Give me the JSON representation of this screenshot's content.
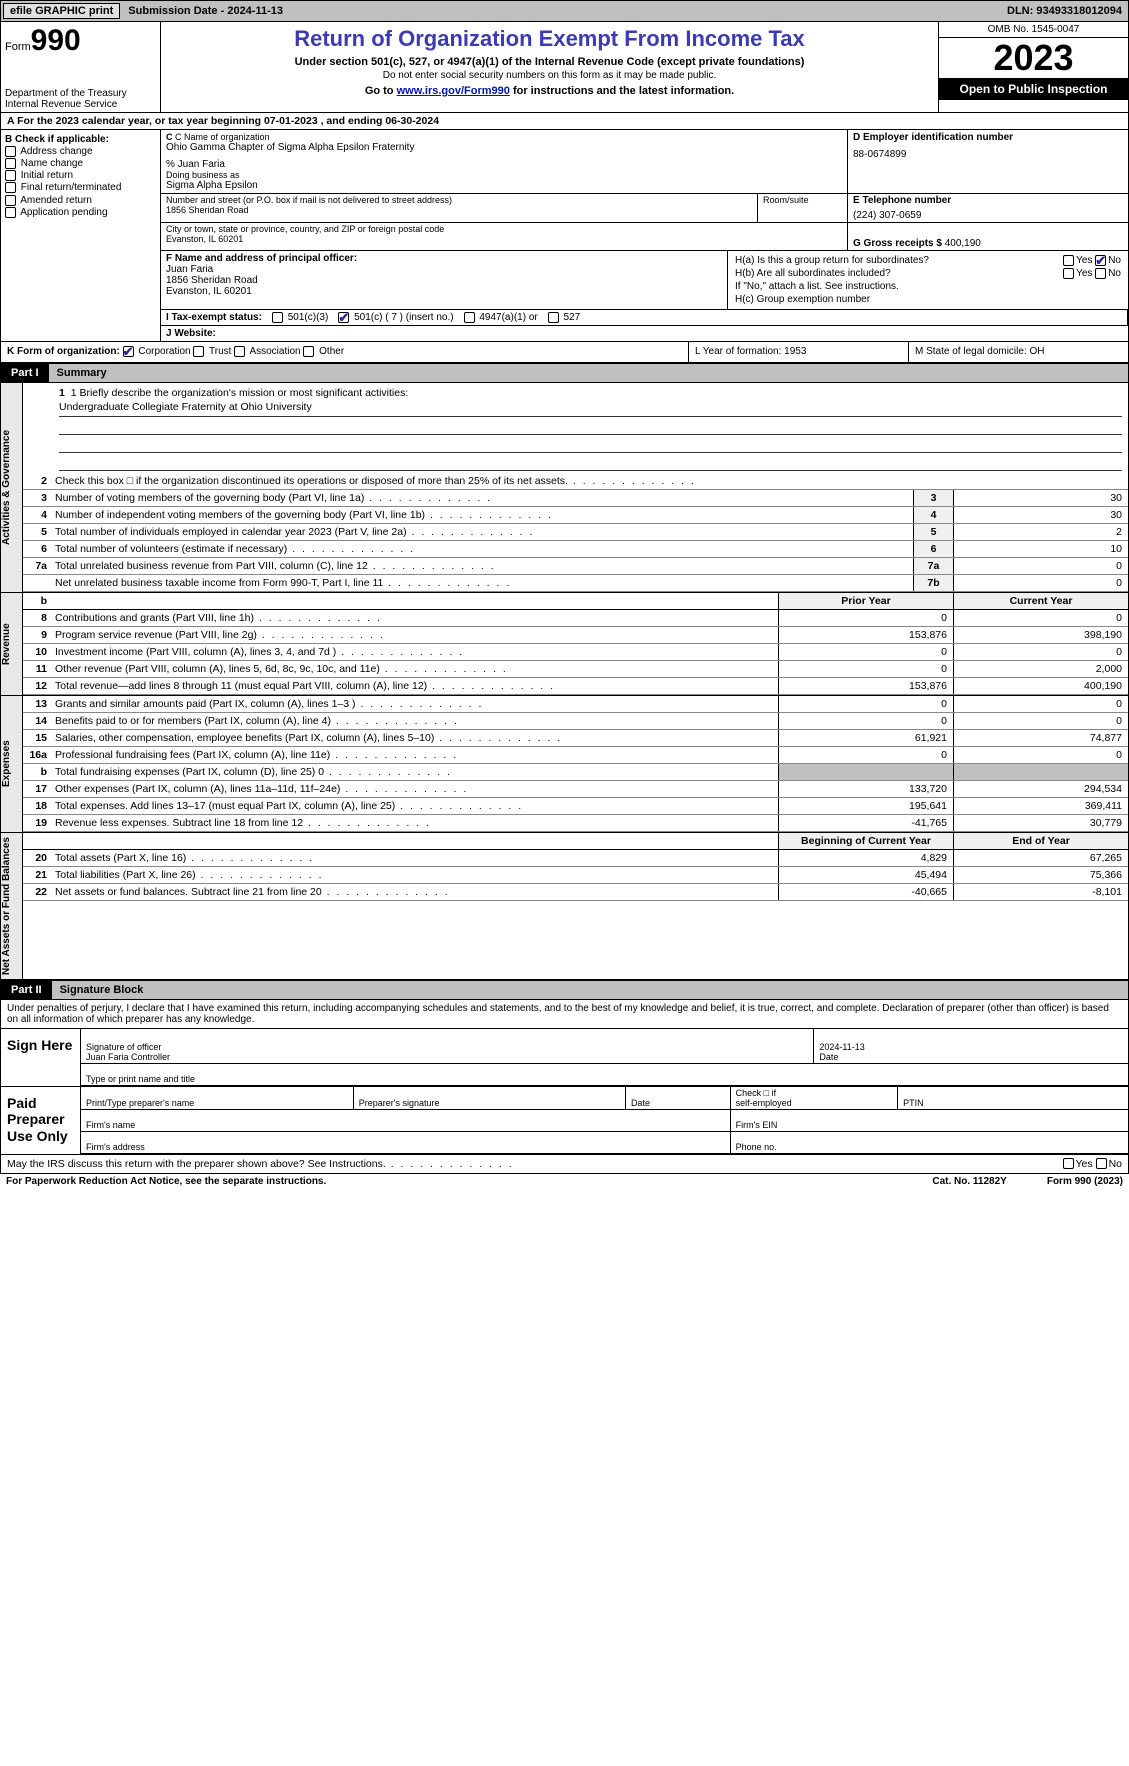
{
  "topbar": {
    "efile": "efile GRAPHIC print",
    "subdate_lbl": "Submission Date - ",
    "subdate": "2024-11-13",
    "dln_lbl": "DLN: ",
    "dln": "93493318012094"
  },
  "header": {
    "form_lbl": "Form",
    "form_no": "990",
    "dept": "Department of the Treasury\nInternal Revenue Service",
    "title": "Return of Organization Exempt From Income Tax",
    "sub": "Under section 501(c), 527, or 4947(a)(1) of the Internal Revenue Code (except private foundations)",
    "sub2": "Do not enter social security numbers on this form as it may be made public.",
    "goto_pre": "Go to ",
    "goto_link": "www.irs.gov/Form990",
    "goto_post": " for instructions and the latest information.",
    "omb": "OMB No. 1545-0047",
    "year": "2023",
    "open": "Open to Public Inspection"
  },
  "lineA": "A For the 2023 calendar year, or tax year beginning 07-01-2023   , and ending 06-30-2024",
  "boxB": {
    "title": "B Check if applicable:",
    "items": [
      "Address change",
      "Name change",
      "Initial return",
      "Final return/terminated",
      "Amended return",
      "Application pending"
    ]
  },
  "boxC": {
    "name_lbl": "C Name of organization",
    "name": "Ohio Gamma Chapter of Sigma Alpha Epsilon Fraternity",
    "co": "% Juan Faria",
    "dba_lbl": "Doing business as",
    "dba": "Sigma Alpha Epsilon",
    "addr_lbl": "Number and street (or P.O. box if mail is not delivered to street address)",
    "addr": "1856 Sheridan Road",
    "room_lbl": "Room/suite",
    "city_lbl": "City or town, state or province, country, and ZIP or foreign postal code",
    "city": "Evanston, IL  60201"
  },
  "boxD": {
    "lbl": "D Employer identification number",
    "val": "88-0674899"
  },
  "boxE": {
    "lbl": "E Telephone number",
    "val": "(224) 307-0659"
  },
  "boxG": {
    "lbl": "G Gross receipts $ ",
    "val": "400,190"
  },
  "boxF": {
    "lbl": "F  Name and address of principal officer:",
    "name": "Juan Faria",
    "addr1": "1856 Sheridan Road",
    "addr2": "Evanston, IL  60201"
  },
  "boxH": {
    "ha": "H(a)  Is this a group return for subordinates?",
    "yes": "Yes",
    "no": "No",
    "hb": "H(b)  Are all subordinates included?",
    "note": "If \"No,\" attach a list. See instructions.",
    "hc": "H(c)  Group exemption number"
  },
  "rowI": {
    "lbl": "I  Tax-exempt status:",
    "o1": "501(c)(3)",
    "o2": "501(c) ( 7 ) (insert no.)",
    "o3": "4947(a)(1) or",
    "o4": "527"
  },
  "rowJ": {
    "lbl": "J  Website:"
  },
  "rowK": {
    "lbl": "K Form of organization:",
    "corp": "Corporation",
    "trust": "Trust",
    "assoc": "Association",
    "other": "Other",
    "L": "L Year of formation: 1953",
    "M": "M State of legal domicile: OH"
  },
  "partI": {
    "num": "Part I",
    "title": "Summary"
  },
  "mission": {
    "q": "1  Briefly describe the organization's mission or most significant activities:",
    "a": "Undergraduate Collegiate Fraternity at Ohio University"
  },
  "gov_lines": [
    {
      "n": "2",
      "t": "Check this box □ if the organization discontinued its operations or disposed of more than 25% of its net assets."
    },
    {
      "n": "3",
      "t": "Number of voting members of the governing body (Part VI, line 1a)",
      "box": "3",
      "v": "30"
    },
    {
      "n": "4",
      "t": "Number of independent voting members of the governing body (Part VI, line 1b)",
      "box": "4",
      "v": "30"
    },
    {
      "n": "5",
      "t": "Total number of individuals employed in calendar year 2023 (Part V, line 2a)",
      "box": "5",
      "v": "2"
    },
    {
      "n": "6",
      "t": "Total number of volunteers (estimate if necessary)",
      "box": "6",
      "v": "10"
    },
    {
      "n": "7a",
      "t": "Total unrelated business revenue from Part VIII, column (C), line 12",
      "box": "7a",
      "v": "0"
    },
    {
      "n": "",
      "t": "Net unrelated business taxable income from Form 990-T, Part I, line 11",
      "box": "7b",
      "v": "0"
    }
  ],
  "two_hdr": {
    "b_label": "b",
    "prior": "Prior Year",
    "curr": "Current Year"
  },
  "revenue": [
    {
      "n": "8",
      "t": "Contributions and grants (Part VIII, line 1h)",
      "p": "0",
      "c": "0"
    },
    {
      "n": "9",
      "t": "Program service revenue (Part VIII, line 2g)",
      "p": "153,876",
      "c": "398,190"
    },
    {
      "n": "10",
      "t": "Investment income (Part VIII, column (A), lines 3, 4, and 7d )",
      "p": "0",
      "c": "0"
    },
    {
      "n": "11",
      "t": "Other revenue (Part VIII, column (A), lines 5, 6d, 8c, 9c, 10c, and 11e)",
      "p": "0",
      "c": "2,000"
    },
    {
      "n": "12",
      "t": "Total revenue—add lines 8 through 11 (must equal Part VIII, column (A), line 12)",
      "p": "153,876",
      "c": "400,190"
    }
  ],
  "expenses": [
    {
      "n": "13",
      "t": "Grants and similar amounts paid (Part IX, column (A), lines 1–3 )",
      "p": "0",
      "c": "0"
    },
    {
      "n": "14",
      "t": "Benefits paid to or for members (Part IX, column (A), line 4)",
      "p": "0",
      "c": "0"
    },
    {
      "n": "15",
      "t": "Salaries, other compensation, employee benefits (Part IX, column (A), lines 5–10)",
      "p": "61,921",
      "c": "74,877"
    },
    {
      "n": "16a",
      "t": "Professional fundraising fees (Part IX, column (A), line 11e)",
      "p": "0",
      "c": "0"
    },
    {
      "n": "b",
      "t": "Total fundraising expenses (Part IX, column (D), line 25) 0",
      "p": "SHADE",
      "c": "SHADE"
    },
    {
      "n": "17",
      "t": "Other expenses (Part IX, column (A), lines 11a–11d, 11f–24e)",
      "p": "133,720",
      "c": "294,534"
    },
    {
      "n": "18",
      "t": "Total expenses. Add lines 13–17 (must equal Part IX, column (A), line 25)",
      "p": "195,641",
      "c": "369,411"
    },
    {
      "n": "19",
      "t": "Revenue less expenses. Subtract line 18 from line 12",
      "p": "-41,765",
      "c": "30,779"
    }
  ],
  "net_hdr": {
    "p": "Beginning of Current Year",
    "c": "End of Year"
  },
  "net": [
    {
      "n": "20",
      "t": "Total assets (Part X, line 16)",
      "p": "4,829",
      "c": "67,265"
    },
    {
      "n": "21",
      "t": "Total liabilities (Part X, line 26)",
      "p": "45,494",
      "c": "75,366"
    },
    {
      "n": "22",
      "t": "Net assets or fund balances. Subtract line 21 from line 20",
      "p": "-40,665",
      "c": "-8,101"
    }
  ],
  "partII": {
    "num": "Part II",
    "title": "Signature Block"
  },
  "decl": "Under penalties of perjury, I declare that I have examined this return, including accompanying schedules and statements, and to the best of my knowledge and belief, it is true, correct, and complete. Declaration of preparer (other than officer) is based on all information of which preparer has any knowledge.",
  "sign": {
    "here": "Sign Here",
    "sig_lbl": "Signature of officer",
    "date_lbl": "Date",
    "date": "2024-11-13",
    "name": "Juan Faria Controller",
    "name_lbl": "Type or print name and title"
  },
  "paid": {
    "lbl": "Paid Preparer Use Only",
    "c1": "Print/Type preparer's name",
    "c2": "Preparer's signature",
    "c3": "Date",
    "c4a": "Check □ if",
    "c4b": "self-employed",
    "c5": "PTIN",
    "firm_name": "Firm's name",
    "firm_ein": "Firm's EIN",
    "firm_addr": "Firm's address",
    "phone": "Phone no."
  },
  "may": {
    "txt": "May the IRS discuss this return with the preparer shown above? See Instructions.",
    "yes": "Yes",
    "no": "No"
  },
  "bottom": {
    "l": "For Paperwork Reduction Act Notice, see the separate instructions.",
    "m": "Cat. No. 11282Y",
    "r": "Form 990 (2023)"
  },
  "rot": {
    "gov": "Activities & Governance",
    "rev": "Revenue",
    "exp": "Expenses",
    "net": "Net Assets or Fund Balances"
  }
}
